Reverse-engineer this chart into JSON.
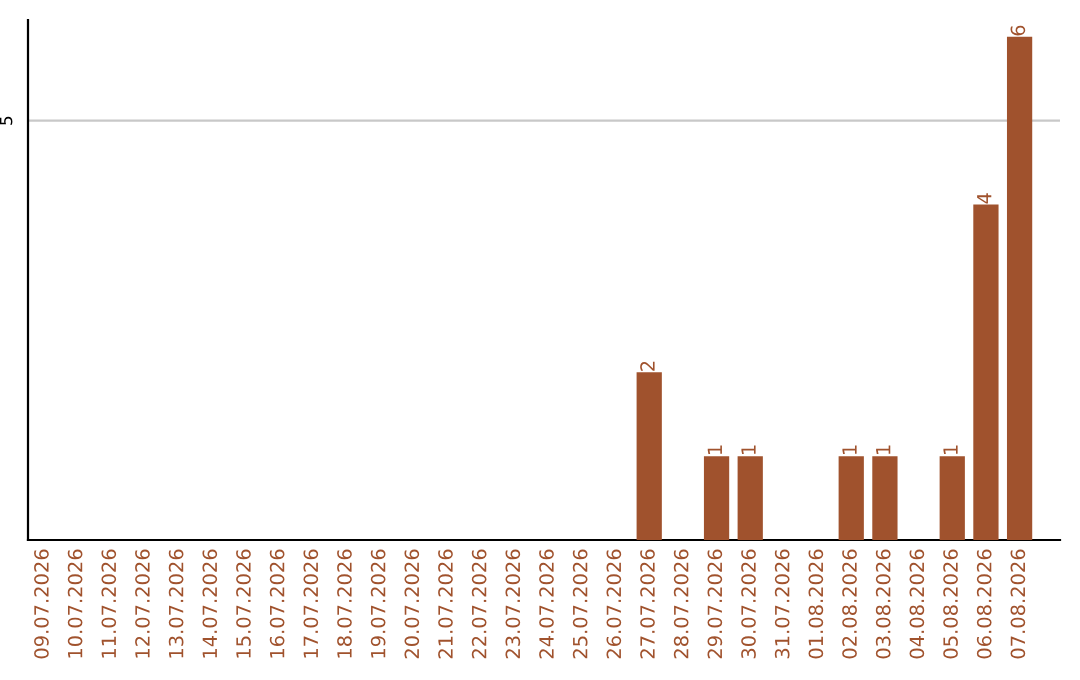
{
  "chart_data": {
    "type": "bar",
    "categories": [
      "09.07.2026",
      "10.07.2026",
      "11.07.2026",
      "12.07.2026",
      "13.07.2026",
      "14.07.2026",
      "15.07.2026",
      "16.07.2026",
      "17.07.2026",
      "18.07.2026",
      "19.07.2026",
      "20.07.2026",
      "21.07.2026",
      "22.07.2026",
      "23.07.2026",
      "24.07.2026",
      "25.07.2026",
      "26.07.2026",
      "27.07.2026",
      "28.07.2026",
      "29.07.2026",
      "30.07.2026",
      "31.07.2026",
      "01.08.2026",
      "02.08.2026",
      "03.08.2026",
      "04.08.2026",
      "05.08.2026",
      "06.08.2026",
      "07.08.2026"
    ],
    "values": [
      null,
      null,
      null,
      null,
      null,
      null,
      null,
      null,
      null,
      null,
      null,
      null,
      null,
      null,
      null,
      null,
      null,
      null,
      2,
      null,
      1,
      1,
      null,
      null,
      1,
      1,
      null,
      1,
      4,
      6
    ],
    "data_labels": true,
    "ylim": [
      0,
      6.2
    ],
    "color": "#a0522d",
    "ref_lines": [
      {
        "axis": "y",
        "value": 5,
        "label": "5",
        "color": "#c8c8c8"
      }
    ]
  }
}
